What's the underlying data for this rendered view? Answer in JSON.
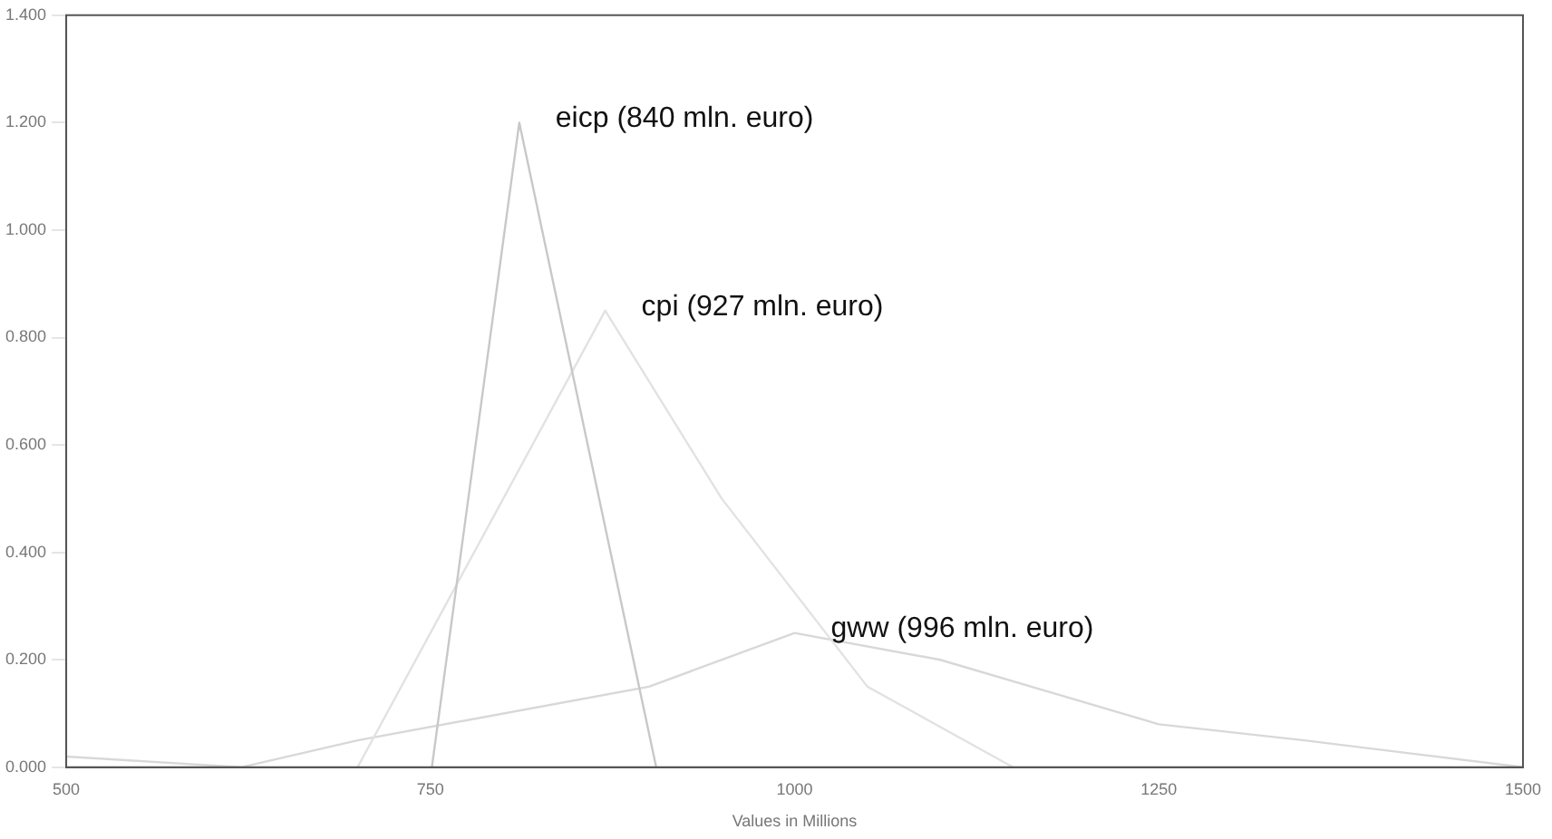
{
  "chart_data": {
    "type": "line",
    "xlabel": "Values in Millions",
    "series": [
      {
        "name": "eicp (840 mln. euro)",
        "color": "#c8c8c8",
        "x": [
          751,
          811,
          905
        ],
        "values": [
          0,
          1.2,
          0
        ]
      },
      {
        "name": "cpi (927 mln. euro)",
        "color": "#e2e2e2",
        "x": [
          700,
          800,
          870,
          950,
          1050,
          1150
        ],
        "values": [
          0,
          0.5,
          0.85,
          0.5,
          0.15,
          0
        ]
      },
      {
        "name": "gww (996 mln. euro)",
        "color": "#d8d8d8",
        "x": [
          500,
          620,
          700,
          900,
          1000,
          1100,
          1250,
          1350,
          1500
        ],
        "values": [
          0.02,
          0,
          0.05,
          0.15,
          0.25,
          0.2,
          0.08,
          0.05,
          0
        ]
      }
    ],
    "xlim": [
      500,
      1500
    ],
    "xticks": [
      500,
      750,
      1000,
      1250,
      1500
    ],
    "ylim": [
      0,
      1.4
    ],
    "yticks": [
      {
        "value": 0,
        "label": "0.000"
      },
      {
        "value": 0.2,
        "label": "0.200"
      },
      {
        "value": 0.4,
        "label": "0.400"
      },
      {
        "value": 0.6,
        "label": "0.600"
      },
      {
        "value": 0.8,
        "label": "0.800"
      },
      {
        "value": 1,
        "label": "1.000"
      },
      {
        "value": 1.2,
        "label": "1.200"
      },
      {
        "value": 1.4,
        "label": "1.400"
      }
    ],
    "grid": false,
    "legend": false,
    "marker": "none",
    "line_style": "solid"
  }
}
